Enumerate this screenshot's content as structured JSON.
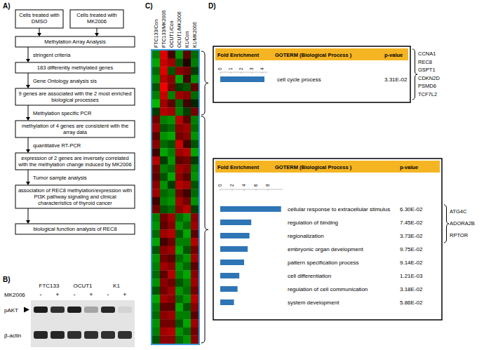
{
  "panel_labels": [
    "A)",
    "B)",
    "C)",
    "D)"
  ],
  "flowchart": {
    "start": [
      "Cells treated with DMSO",
      "Cells treated with MK2006"
    ],
    "steps": [
      {
        "box": "Methylation Array Analysis"
      },
      {
        "arrow_label": "stringent criteria",
        "box": "183 differently methylated genes"
      },
      {
        "arrow_label": "Gene Ontology analysis sis",
        "box": "9 genes  are associated with the 2 most enriched biological processes"
      },
      {
        "arrow_label": "Methylation specific PCR",
        "box": "methylation of 4 genes  are consistent with the array data"
      },
      {
        "arrow_label": "quantitative RT-PCR",
        "box": "expression of 2 genes are inversely correlated with the methylation change induced by MK2006"
      },
      {
        "arrow_label": "Tumor sample analysis",
        "box": "association of REC8 methylation/expression with PI3K pathway signaling and clinical characteristics of thyroid cancer"
      },
      {
        "box": "biological function analysis of REC8"
      }
    ]
  },
  "blot": {
    "cell_lines": [
      "FTC133",
      "OCUT1",
      "K1"
    ],
    "treatment_label": "MK2006",
    "treatment_signs": [
      "-",
      "+"
    ],
    "bands": [
      {
        "label": "pAKT",
        "intensity": [
          0.95,
          0.85,
          0.95,
          0.3,
          0.9,
          0.08
        ]
      },
      {
        "label": "β-actin",
        "intensity": [
          0.9,
          0.9,
          0.85,
          0.85,
          0.85,
          0.85
        ]
      }
    ]
  },
  "heatmap": {
    "columns": [
      "FTC133/Con",
      "FTC133/MK2006",
      "OCUT1/Con",
      "OCUT1/MK2006",
      "K1/Con",
      "K1/MK2006"
    ],
    "cluster_sizes": [
      8,
      28
    ],
    "cells": [
      [
        -0.5,
        0.9,
        0.2,
        -0.6,
        0.3,
        -0.4
      ],
      [
        -0.7,
        0.8,
        0.6,
        -0.3,
        0.1,
        -0.5
      ],
      [
        -0.4,
        0.9,
        -0.3,
        0.5,
        0.4,
        -0.2
      ],
      [
        -0.6,
        0.7,
        0.5,
        -0.7,
        0.2,
        -0.6
      ],
      [
        -0.3,
        1.0,
        0.4,
        -0.2,
        -0.3,
        0.3
      ],
      [
        -0.5,
        0.8,
        -0.5,
        0.6,
        0.5,
        -0.4
      ],
      [
        -0.8,
        0.6,
        0.3,
        -0.4,
        0.2,
        -0.1
      ],
      [
        -0.2,
        0.7,
        0.6,
        -0.5,
        -0.2,
        0.4
      ],
      [
        0.4,
        -0.5,
        -0.6,
        0.7,
        0.3,
        -0.5
      ],
      [
        0.6,
        -0.3,
        -0.4,
        0.5,
        0.6,
        -0.4
      ],
      [
        0.3,
        -0.6,
        -0.7,
        0.4,
        0.5,
        -0.6
      ],
      [
        0.5,
        -0.4,
        -0.3,
        0.8,
        0.2,
        -0.3
      ],
      [
        0.2,
        -0.7,
        -0.5,
        0.6,
        0.7,
        -0.7
      ],
      [
        0.7,
        -0.2,
        -0.6,
        0.3,
        0.4,
        -0.2
      ],
      [
        0.4,
        -0.5,
        -0.4,
        0.6,
        0.5,
        -0.5
      ],
      [
        0.3,
        -0.3,
        -0.7,
        0.5,
        0.3,
        -0.6
      ],
      [
        0.5,
        -0.6,
        -0.2,
        0.7,
        0.6,
        -0.3
      ],
      [
        0.6,
        -0.4,
        -0.5,
        0.4,
        0.2,
        -0.4
      ],
      [
        0.2,
        -0.5,
        -0.6,
        0.6,
        0.4,
        -0.6
      ],
      [
        0.4,
        -0.3,
        -0.4,
        0.5,
        0.7,
        -0.2
      ],
      [
        -0.5,
        0.4,
        0.6,
        -0.4,
        -0.6,
        0.5
      ],
      [
        -0.6,
        0.3,
        0.5,
        -0.6,
        -0.4,
        0.6
      ],
      [
        -0.4,
        0.6,
        0.7,
        -0.3,
        -0.7,
        0.3
      ],
      [
        -0.7,
        0.2,
        0.4,
        -0.5,
        -0.5,
        0.7
      ],
      [
        -0.3,
        0.5,
        0.6,
        -0.7,
        -0.3,
        0.4
      ],
      [
        -0.6,
        0.4,
        0.3,
        -0.4,
        -0.6,
        0.6
      ],
      [
        -0.5,
        0.6,
        0.5,
        -0.6,
        -0.4,
        0.3
      ],
      [
        -0.4,
        0.3,
        0.7,
        -0.5,
        -0.7,
        0.5
      ],
      [
        -0.6,
        0.5,
        0.4,
        -0.3,
        -0.5,
        0.6
      ],
      [
        -0.3,
        0.4,
        0.6,
        -0.6,
        -0.4,
        0.4
      ],
      [
        -0.7,
        0.6,
        0.5,
        -0.4,
        -0.6,
        0.7
      ],
      [
        -0.5,
        0.3,
        0.3,
        -0.7,
        -0.3,
        0.5
      ],
      [
        -0.4,
        0.5,
        0.6,
        -0.5,
        -0.5,
        0.3
      ],
      [
        -0.6,
        0.4,
        0.4,
        -0.3,
        -0.7,
        0.6
      ],
      [
        -0.5,
        0.6,
        0.7,
        -0.6,
        -0.4,
        0.4
      ],
      [
        -0.3,
        0.5,
        0.5,
        -0.4,
        -0.6,
        0.5
      ]
    ]
  },
  "chart_data": [
    {
      "type": "bar",
      "orientation": "horizontal",
      "header": [
        "Fold Enrichment",
        "GOTERM (Biological Process )",
        "p-value"
      ],
      "categories": [
        "cell cycle process"
      ],
      "values": [
        4.2
      ],
      "p_values": [
        "3.31E-02"
      ],
      "genes": [
        "CCNA1",
        "REC8",
        "GSPT1",
        "CDKN2D",
        "PSMD6",
        "TCF7L2"
      ],
      "xlim": [
        0,
        4.5
      ],
      "xticks": [
        0,
        1,
        2,
        3,
        4
      ],
      "color": "#2e75b6"
    },
    {
      "type": "bar",
      "orientation": "horizontal",
      "header": [
        "Fold Enrichment",
        "GOTERM (Biological Process )",
        "p-value"
      ],
      "categories": [
        "cellular response to extracellular stimulus",
        "regulation of binding",
        "regionalization",
        "embryonic organ development",
        "pattern specification process",
        "cell differentiation",
        "regulation of cell communication",
        "system development"
      ],
      "values": [
        10.2,
        5.2,
        4.9,
        4.6,
        4.0,
        3.2,
        2.9,
        2.3
      ],
      "p_values": [
        "6.30E-02",
        "7.45E-02",
        "3.73E-02",
        "9.75E-02",
        "9.14E-02",
        "1.21E-03",
        "3.18E-02",
        "5.86E-02"
      ],
      "genes": [
        "ATG4C",
        "ADORA2B",
        "RPTOR"
      ],
      "xlim": [
        0,
        10.5
      ],
      "xticks": [
        0,
        2,
        4,
        6,
        8
      ],
      "color": "#2e75b6"
    }
  ]
}
